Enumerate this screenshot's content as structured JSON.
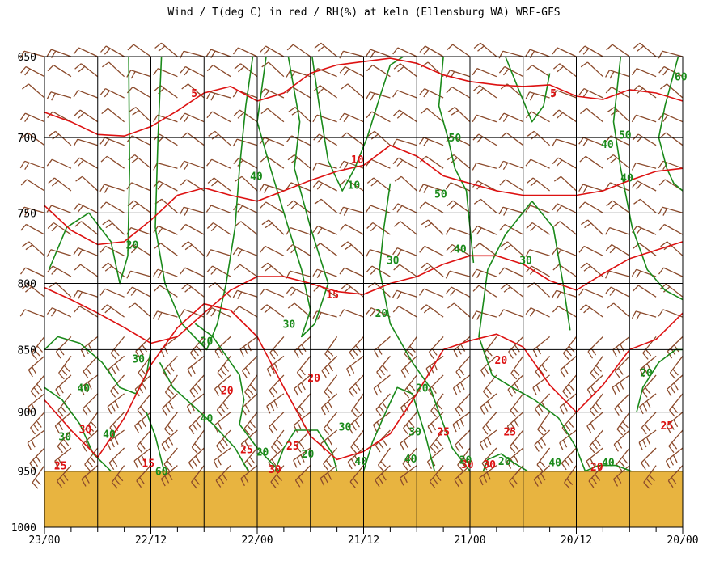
{
  "chart_data": {
    "type": "line",
    "title": "Wind / T(deg C) in red / RH(%) at keln (Ellensburg WA)  WRF-GFS",
    "y_axis": {
      "scale": "log",
      "inverted": true,
      "range": [
        650,
        1000
      ],
      "ticks": [
        650,
        700,
        750,
        800,
        850,
        900,
        950,
        1000
      ]
    },
    "x_axis": {
      "reversed": true,
      "range_hours": [
        0,
        72
      ],
      "tick_labels": [
        "23/00",
        "22/12",
        "22/00",
        "21/12",
        "21/00",
        "20/12",
        "20/00"
      ]
    },
    "grid": true,
    "ground_level_hpa": 950,
    "colors": {
      "temperature": "#dd1111",
      "rh": "#1a8a1a",
      "wind": "#8b4a2b",
      "ground": "#e8b440"
    },
    "series": [
      {
        "name": "T(deg C)",
        "labels": [
          {
            "text": "5",
            "x": 16.9,
            "p": 672
          },
          {
            "text": "5",
            "x": 57.4,
            "p": 672
          },
          {
            "text": "10",
            "x": 35.3,
            "p": 714
          },
          {
            "text": "15",
            "x": 32.5,
            "p": 808
          },
          {
            "text": "20",
            "x": 20.6,
            "p": 882
          },
          {
            "text": "20",
            "x": 30.4,
            "p": 872
          },
          {
            "text": "20",
            "x": 51.5,
            "p": 858
          },
          {
            "text": "20",
            "x": 62.3,
            "p": 946
          },
          {
            "text": "25",
            "x": 45.0,
            "p": 916
          },
          {
            "text": "25",
            "x": 52.5,
            "p": 916
          },
          {
            "text": "25",
            "x": 28.0,
            "p": 928
          },
          {
            "text": "25",
            "x": 22.8,
            "p": 931
          },
          {
            "text": "25",
            "x": 70.2,
            "p": 911
          },
          {
            "text": "25",
            "x": 1.8,
            "p": 945
          },
          {
            "text": "30",
            "x": 4.6,
            "p": 914
          },
          {
            "text": "30",
            "x": 26.0,
            "p": 948
          },
          {
            "text": "30",
            "x": 47.7,
            "p": 944
          },
          {
            "text": "30",
            "x": 50.2,
            "p": 944
          },
          {
            "text": "15",
            "x": 11.7,
            "p": 943
          }
        ],
        "lines": [
          {
            "p": [
              684,
              690,
              698,
              699,
              693,
              683,
              672,
              668,
              677,
              672,
              660,
              655,
              653,
              651,
              654,
              661,
              665,
              667,
              668,
              667,
              674,
              676,
              670,
              672,
              677
            ]
          },
          {
            "p": [
              745,
              762,
              772,
              770,
              755,
              738,
              733,
              738,
              742,
              735,
              728,
              722,
              718,
              705,
              712,
              725,
              730,
              735,
              738,
              738,
              738,
              735,
              728,
              722,
              720
            ]
          },
          {
            "p": [
              803,
              812,
              822,
              833,
              845,
              840,
              822,
              805,
              795,
              795,
              800,
              806,
              808,
              800,
              795,
              786,
              780,
              780,
              786,
              798,
              805,
              793,
              782,
              776,
              770
            ]
          },
          {
            "p": [
              890,
              915,
              938,
              905,
              862,
              833,
              815,
              820,
              840,
              880,
              920,
              940,
              933,
              918,
              885,
              850,
              843,
              838,
              848,
              878,
              900,
              878,
              850,
              842,
              822
            ]
          }
        ]
      },
      {
        "name": "RH(%)",
        "labels": [
          {
            "text": "60",
            "x": 71.8,
            "p": 662
          },
          {
            "text": "50",
            "x": 65.5,
            "p": 698
          },
          {
            "text": "50",
            "x": 46.3,
            "p": 700
          },
          {
            "text": "50",
            "x": 44.7,
            "p": 737
          },
          {
            "text": "40",
            "x": 63.5,
            "p": 704
          },
          {
            "text": "40",
            "x": 65.7,
            "p": 726
          },
          {
            "text": "40",
            "x": 23.9,
            "p": 725
          },
          {
            "text": "40",
            "x": 46.9,
            "p": 775
          },
          {
            "text": "40",
            "x": 4.4,
            "p": 880
          },
          {
            "text": "40",
            "x": 18.3,
            "p": 905
          },
          {
            "text": "40",
            "x": 35.7,
            "p": 941
          },
          {
            "text": "40",
            "x": 41.3,
            "p": 939
          },
          {
            "text": "40",
            "x": 57.6,
            "p": 942
          },
          {
            "text": "40",
            "x": 63.6,
            "p": 942
          },
          {
            "text": "30",
            "x": 39.3,
            "p": 783
          },
          {
            "text": "30",
            "x": 54.3,
            "p": 783
          },
          {
            "text": "30",
            "x": 27.6,
            "p": 830
          },
          {
            "text": "30",
            "x": 10.6,
            "p": 857
          },
          {
            "text": "30",
            "x": 2.3,
            "p": 920
          },
          {
            "text": "30",
            "x": 33.9,
            "p": 912
          },
          {
            "text": "30",
            "x": 41.8,
            "p": 916
          },
          {
            "text": "20",
            "x": 9.9,
            "p": 772
          },
          {
            "text": "20",
            "x": 18.3,
            "p": 843
          },
          {
            "text": "20",
            "x": 38.0,
            "p": 822
          },
          {
            "text": "20",
            "x": 42.6,
            "p": 880
          },
          {
            "text": "20",
            "x": 67.9,
            "p": 868
          },
          {
            "text": "20",
            "x": 47.5,
            "p": 940
          },
          {
            "text": "20",
            "x": 51.9,
            "p": 941
          },
          {
            "text": "20",
            "x": 29.7,
            "p": 935
          },
          {
            "text": "10",
            "x": 34.9,
            "p": 731
          },
          {
            "text": "40",
            "x": 7.3,
            "p": 918
          },
          {
            "text": "60",
            "x": 13.2,
            "p": 950
          },
          {
            "text": "20",
            "x": 24.6,
            "p": 933
          }
        ]
      },
      {
        "name": "Wind",
        "levels_hpa": [
          650,
          662,
          675,
          690,
          705,
          720,
          735,
          750,
          765,
          780,
          795,
          810,
          825,
          840,
          855,
          870,
          885,
          900,
          915,
          930,
          945
        ]
      }
    ]
  }
}
